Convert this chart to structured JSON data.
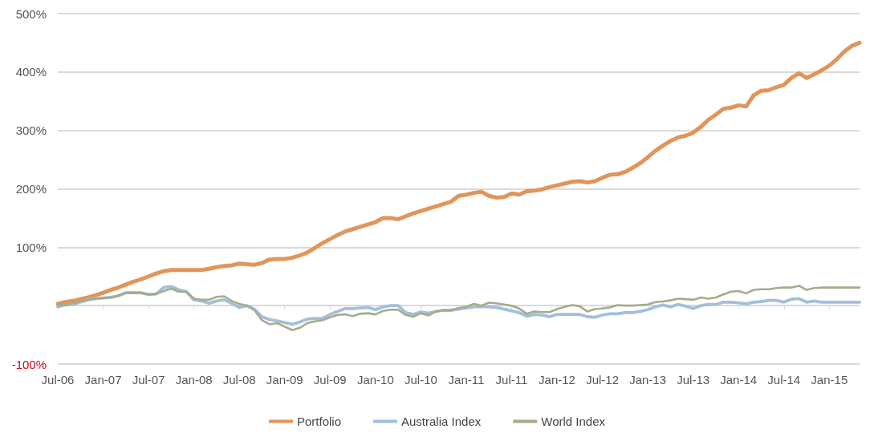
{
  "chart_data": {
    "type": "line",
    "categories": [
      "Jul-06",
      null,
      null,
      null,
      null,
      null,
      "Jan-07",
      null,
      null,
      null,
      null,
      null,
      "Jul-07",
      null,
      null,
      null,
      null,
      null,
      "Jan-08",
      null,
      null,
      null,
      null,
      null,
      "Jul-08",
      null,
      null,
      null,
      null,
      null,
      "Jan-09",
      null,
      null,
      null,
      null,
      null,
      "Jul-09",
      null,
      null,
      null,
      null,
      null,
      "Jan-10",
      null,
      null,
      null,
      null,
      null,
      "Jul-10",
      null,
      null,
      null,
      null,
      null,
      "Jan-11",
      null,
      null,
      null,
      null,
      null,
      "Jul-11",
      null,
      null,
      null,
      null,
      null,
      "Jan-12",
      null,
      null,
      null,
      null,
      null,
      "Jul-12",
      null,
      null,
      null,
      null,
      null,
      "Jan-13",
      null,
      null,
      null,
      null,
      null,
      "Jul-13",
      null,
      null,
      null,
      null,
      null,
      "Jan-14",
      null,
      null,
      null,
      null,
      null,
      "Jul-14",
      null,
      null,
      null,
      null,
      null,
      "Jan-15",
      null,
      null,
      null,
      null
    ],
    "series": [
      {
        "name": "Portfolio",
        "color": "#e0955a",
        "values": [
          3,
          6,
          8,
          11,
          14,
          18,
          22,
          27,
          31,
          36,
          41,
          45,
          50,
          55,
          59,
          61,
          61,
          61,
          61,
          61,
          63,
          66,
          68,
          69,
          72,
          71,
          70,
          73,
          79,
          80,
          80,
          82,
          86,
          91,
          99,
          107,
          114,
          121,
          127,
          131,
          135,
          139,
          143,
          150,
          150,
          148,
          153,
          158,
          162,
          166,
          170,
          174,
          178,
          188,
          190,
          193,
          195,
          188,
          185,
          186,
          192,
          190,
          196,
          197,
          199,
          203,
          206,
          209,
          212,
          213,
          211,
          213,
          219,
          224,
          225,
          229,
          236,
          244,
          254,
          265,
          274,
          282,
          288,
          291,
          296,
          306,
          318,
          327,
          337,
          339,
          343,
          341,
          360,
          368,
          369,
          374,
          378,
          390,
          398,
          390,
          396,
          403,
          411,
          422,
          435,
          445,
          450
        ]
      },
      {
        "name": "Australia Index",
        "color": "#a3bfd9",
        "values": [
          -2,
          1,
          2,
          6,
          10,
          12,
          13,
          14,
          17,
          22,
          22,
          22,
          19,
          20,
          31,
          33,
          27,
          24,
          10,
          8,
          4,
          8,
          10,
          4,
          -3,
          0,
          -6,
          -19,
          -24,
          -26,
          -29,
          -32,
          -28,
          -23,
          -22,
          -22,
          -15,
          -10,
          -5,
          -5,
          -4,
          -3,
          -7,
          -2,
          0,
          0,
          -12,
          -15,
          -11,
          -13,
          -10,
          -8,
          -8,
          -6,
          -4,
          -2,
          -2,
          -2,
          -3,
          -6,
          -9,
          -12,
          -18,
          -15,
          -16,
          -19,
          -15,
          -15,
          -15,
          -15,
          -19,
          -20,
          -16,
          -14,
          -14,
          -12,
          -12,
          -10,
          -7,
          -2,
          1,
          -2,
          2,
          -1,
          -5,
          0,
          2,
          2,
          6,
          6,
          5,
          3,
          6,
          7,
          9,
          9,
          6,
          11,
          12,
          6,
          8,
          6,
          6,
          6,
          6,
          6,
          6
        ]
      },
      {
        "name": "World Index",
        "color": "#a4ad8b",
        "values": [
          0,
          2,
          4,
          7,
          10,
          12,
          13,
          14,
          17,
          22,
          22,
          22,
          19,
          20,
          25,
          29,
          24,
          24,
          12,
          10,
          10,
          15,
          16,
          8,
          3,
          0,
          -8,
          -25,
          -32,
          -30,
          -36,
          -42,
          -38,
          -30,
          -27,
          -25,
          -20,
          -16,
          -15,
          -18,
          -14,
          -13,
          -15,
          -9,
          -7,
          -7,
          -16,
          -19,
          -13,
          -17,
          -10,
          -8,
          -8,
          -4,
          -2,
          3,
          0,
          5,
          4,
          2,
          0,
          -5,
          -14,
          -10,
          -11,
          -11,
          -6,
          -2,
          1,
          -1,
          -10,
          -6,
          -5,
          -3,
          1,
          0,
          0,
          1,
          2,
          6,
          7,
          9,
          12,
          11,
          10,
          14,
          12,
          14,
          19,
          24,
          25,
          21,
          27,
          28,
          28,
          30,
          31,
          31,
          34,
          27,
          30,
          31,
          31,
          31,
          31,
          31,
          31
        ]
      }
    ],
    "ylim": [
      -100,
      500
    ],
    "yticks": [
      {
        "value": -100,
        "label": "-100%"
      },
      {
        "value": 0,
        "label": null
      },
      {
        "value": 100,
        "label": "100%"
      },
      {
        "value": 200,
        "label": "200%"
      },
      {
        "value": 300,
        "label": "300%"
      },
      {
        "value": 400,
        "label": "400%"
      },
      {
        "value": 500,
        "label": "500%"
      }
    ],
    "grid": "y",
    "legend": "bottom",
    "marker": "none",
    "line_style": "solid"
  }
}
